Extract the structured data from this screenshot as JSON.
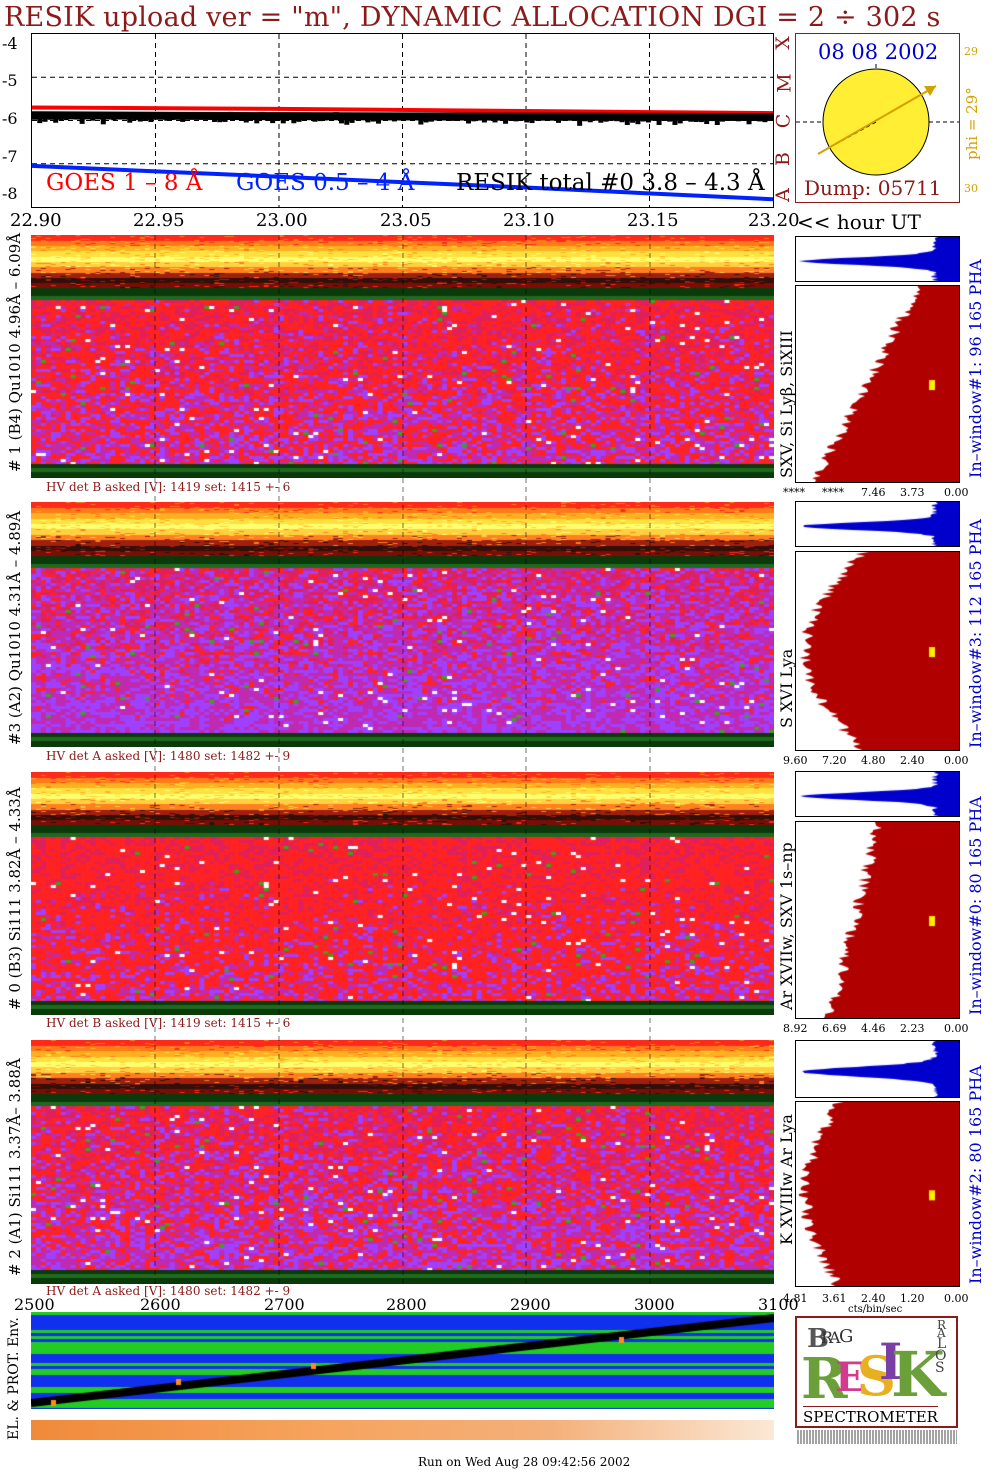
{
  "header": {
    "title": "RESIK upload ver = \"m\", DYNAMIC ALLOCATION  DGI =   2 ÷ 302 s",
    "date": "08 08 2002",
    "dump": "Dump: 05711",
    "phi_label": "phi = 29°",
    "phi_top": "29",
    "phi_bottom": "30",
    "flare_classes": [
      "X",
      "M",
      "C",
      "B",
      "A"
    ],
    "footer": "Run on Wed Aug 28 09:42:56 2002"
  },
  "goes_legend": {
    "goes_long": "GOES 1 – 8 Å",
    "goes_short": "GOES 0.5 – 4 Å",
    "resik_total": "RESIK total #0  3.8 – 4.3 Å"
  },
  "colors": {
    "goes_long": "#ff0000",
    "goes_short": "#0022ff",
    "resik_total": "#000000",
    "title": "#8b1a1a",
    "pha": "#0000cc",
    "histogram": "#b00000"
  },
  "chart_data": [
    {
      "type": "line",
      "title": "GOES / RESIK light curves",
      "ylabel": "",
      "ylim": [
        -8,
        -4
      ],
      "yticks": [
        "-4",
        "-5",
        "-6",
        "-7",
        "-8"
      ],
      "xlim": [
        22.9,
        23.2
      ],
      "xticks": [
        "22.90",
        "22.95",
        "23.00",
        "23.05",
        "23.10",
        "23.15",
        "23.20"
      ],
      "xlabel": "<< hour UT",
      "series": [
        {
          "name": "GOES 1 – 8 Å",
          "x": [
            22.9,
            23.0,
            23.1,
            23.2
          ],
          "values": [
            -5.7,
            -5.73,
            -5.78,
            -5.83
          ]
        },
        {
          "name": "GOES 0.5 – 4 Å",
          "x": [
            22.9,
            23.0,
            23.1,
            23.2
          ],
          "values": [
            -7.05,
            -7.3,
            -7.55,
            -7.82
          ]
        },
        {
          "name": "RESIK total #0  3.8 – 4.3 Å",
          "x": [
            22.9,
            23.0,
            23.1,
            23.2
          ],
          "values": [
            -5.88,
            -5.9,
            -5.91,
            -5.92
          ]
        }
      ]
    },
    {
      "type": "heatmap",
      "panels": [
        {
          "id": "1",
          "label": "# 1 (B4) Qu1010 4.96Å – 6.09Å",
          "lines": "SXV, Si Lyβ, SiXIII",
          "hv": "HV det B asked [V]:  1419 set:  1415  +-    6",
          "window": "In–window#1:   96 165 PHA",
          "pha_ticks": [
            "****",
            "****",
            "7.46",
            "3.73",
            "0.00"
          ]
        },
        {
          "id": "3",
          "label": "#3 (A2) Qu1010  4.31Å – 4.89Å",
          "lines": "S XVI Lya",
          "hv": "HV det A asked [V]:  1480 set:  1482  +-    9",
          "window": "In–window#3:   112 165 PHA",
          "pha_ticks": [
            "9.60",
            "7.20",
            "4.80",
            "2.40",
            "0.00"
          ]
        },
        {
          "id": "0",
          "label": "# 0 (B3) Si111  3.82Å – 4.33Å",
          "lines": "Ar XVIIw, SXV 1s–np",
          "hv": "HV det B asked [V]:  1419 set:  1415  +-    6",
          "window": "In–window#0:   80 165 PHA",
          "pha_ticks": [
            "8.92",
            "6.69",
            "4.46",
            "2.23",
            "0.00"
          ]
        },
        {
          "id": "2",
          "label": "# 2 (A1) Si111  3.37Å– 3.88Å",
          "lines": "K XVIIIw  Ar Lya",
          "hv": "HV det A asked [V]:  1480 set:  1482  +-    9",
          "window": "In–window#2:   80 165 PHA",
          "pha_ticks": [
            "4.81",
            "3.61",
            "2.40",
            "1.20",
            "0.00"
          ]
        }
      ],
      "histogram_xlabel": "cts/bin/sec"
    },
    {
      "type": "heatmap",
      "title": "EL. & PROT. Env.",
      "xlim": [
        2500,
        3100
      ],
      "xticks": [
        "2500",
        "2600",
        "2700",
        "2800",
        "2900",
        "3000",
        "3100"
      ]
    }
  ],
  "logo": {
    "text": "SPECTROMETER",
    "letters": [
      "B",
      "R",
      "A",
      "G",
      "R",
      "E",
      "S",
      "I",
      "K",
      "S",
      "O",
      "L",
      "A",
      "R"
    ]
  }
}
